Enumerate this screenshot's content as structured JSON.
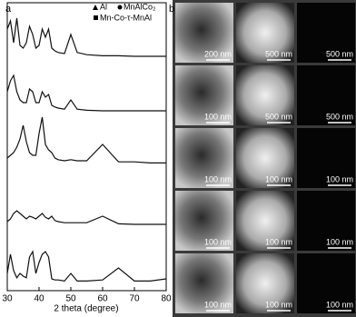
{
  "panel_labels": [
    "a",
    "b"
  ],
  "chart_data": {
    "type": "line",
    "x_label": "2 theta (degree)",
    "legend": [
      "Al",
      "MnAlCo₂",
      "Mn-Co-τ-MnAl"
    ],
    "xlim": [
      30,
      80
    ],
    "xticks": [
      30,
      40,
      50,
      60,
      70,
      80
    ],
    "x": [
      30,
      31,
      32,
      33,
      34,
      35,
      36,
      37,
      38,
      39,
      40,
      41,
      42,
      43,
      44,
      45,
      46,
      48,
      50,
      52,
      55,
      60,
      65,
      70,
      75,
      80
    ],
    "series": [
      {
        "color": "#111111",
        "values": [
          55,
          70,
          30,
          75,
          25,
          20,
          30,
          60,
          45,
          20,
          25,
          55,
          40,
          55,
          20,
          15,
          12,
          10,
          45,
          12,
          8,
          6,
          6,
          5,
          5,
          5
        ]
      },
      {
        "color": "#111111",
        "values": [
          40,
          60,
          70,
          40,
          25,
          20,
          20,
          45,
          40,
          20,
          20,
          40,
          30,
          35,
          15,
          12,
          10,
          8,
          25,
          8,
          6,
          5,
          5,
          5,
          5,
          5
        ]
      },
      {
        "color": "#111111",
        "values": [
          15,
          20,
          25,
          35,
          50,
          75,
          45,
          25,
          20,
          20,
          60,
          90,
          40,
          30,
          25,
          15,
          12,
          10,
          12,
          10,
          10,
          40,
          8,
          8,
          6,
          6
        ]
      },
      {
        "color": "#111111",
        "values": [
          10,
          15,
          25,
          30,
          25,
          20,
          15,
          20,
          18,
          15,
          20,
          25,
          18,
          15,
          20,
          12,
          10,
          8,
          8,
          8,
          8,
          20,
          6,
          5,
          5,
          5
        ]
      },
      {
        "color": "#111111",
        "values": [
          20,
          55,
          25,
          12,
          20,
          15,
          12,
          50,
          60,
          20,
          40,
          55,
          60,
          50,
          10,
          8,
          8,
          6,
          20,
          6,
          6,
          8,
          30,
          6,
          6,
          10
        ]
      }
    ]
  },
  "images": {
    "scale_bars": [
      [
        "200 nm",
        "500 nm",
        "500 nm"
      ],
      [
        "100 nm",
        "500 nm",
        "500 nm"
      ],
      [
        "100 nm",
        "100 nm",
        "100 nm"
      ],
      [
        "100 nm",
        "100 nm",
        "100 nm"
      ],
      [
        "100 nm",
        "100 nm",
        "100 nm"
      ]
    ]
  }
}
